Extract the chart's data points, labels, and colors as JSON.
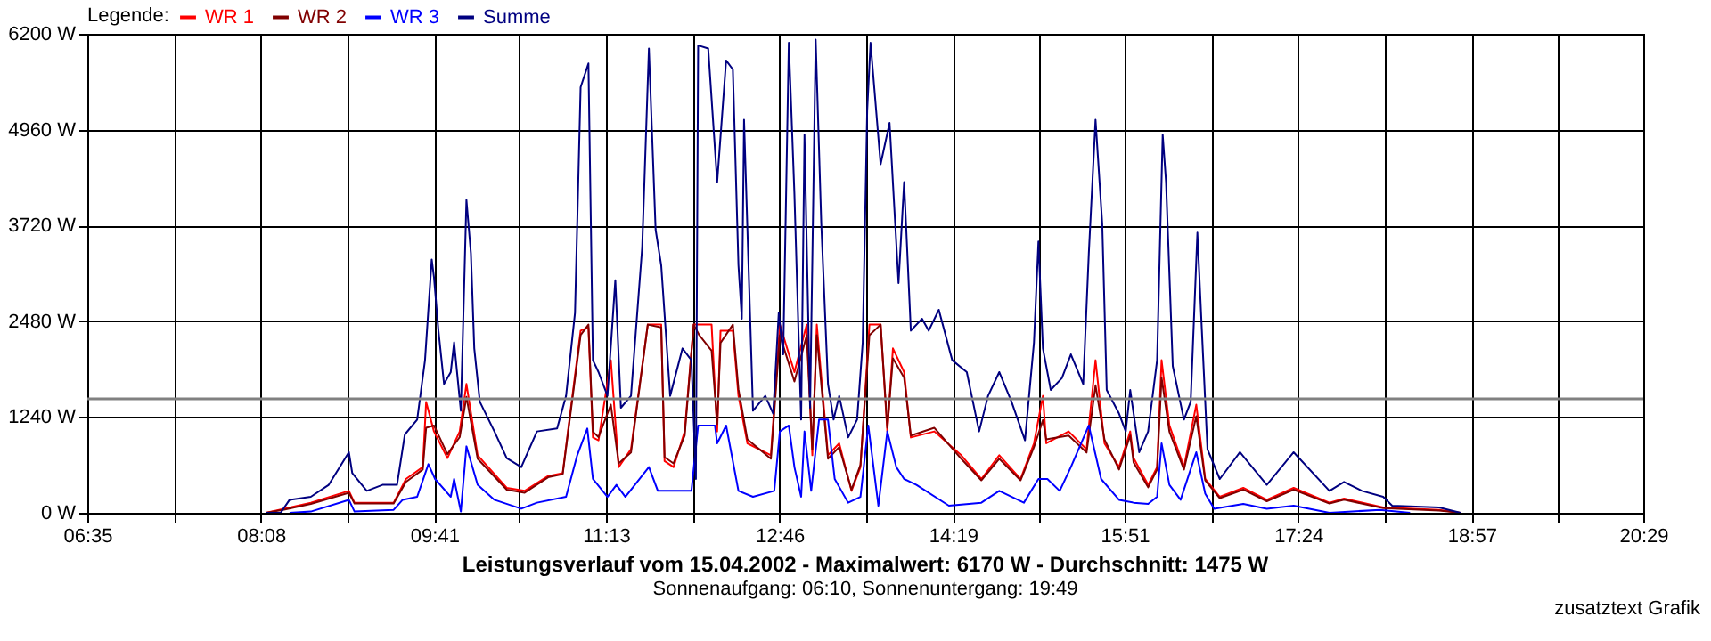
{
  "chart_data": {
    "type": "line",
    "title": "Leistungsverlauf vom 15.04.2002 - Maximalwert: 6170 W - Durchschnitt: 1475 W",
    "subtitle": "Sonnenaufgang: 06:10, Sonnenuntergang: 19:49",
    "legend_title": "Legende:",
    "legend": "top left",
    "grid": true,
    "line_style": "solid",
    "annotations": [
      "zusatztext Grafik"
    ],
    "xlim": [
      6.5833,
      20.4833
    ],
    "xticks": [
      {
        "value": 6.5833,
        "label": "06:35"
      },
      {
        "value": 7.3556,
        "label": null
      },
      {
        "value": 8.1333,
        "label": "08:08"
      },
      {
        "value": 8.9,
        "label": null
      },
      {
        "value": 9.6833,
        "label": "09:41"
      },
      {
        "value": 10.4444,
        "label": null
      },
      {
        "value": 11.2167,
        "label": "11:13"
      },
      {
        "value": 11.9889,
        "label": null
      },
      {
        "value": 12.7667,
        "label": "12:46"
      },
      {
        "value": 13.5333,
        "label": null
      },
      {
        "value": 14.3167,
        "label": "14:19"
      },
      {
        "value": 15.0778,
        "label": null
      },
      {
        "value": 15.85,
        "label": "15:51"
      },
      {
        "value": 16.6222,
        "label": null
      },
      {
        "value": 17.4,
        "label": "17:24"
      },
      {
        "value": 18.1667,
        "label": null
      },
      {
        "value": 18.95,
        "label": "18:57"
      },
      {
        "value": 19.7111,
        "label": null
      },
      {
        "value": 20.4833,
        "label": "20:29"
      }
    ],
    "ylim": [
      0,
      6200
    ],
    "yticks": [
      {
        "value": 0,
        "label": "0 W"
      },
      {
        "value": 1240,
        "label": "1240 W"
      },
      {
        "value": 2480,
        "label": "2480 W"
      },
      {
        "value": 3720,
        "label": "3720 W"
      },
      {
        "value": 4960,
        "label": "4960 W"
      },
      {
        "value": 6200,
        "label": "6200 W"
      }
    ],
    "ref_lines": [
      {
        "axis": "y",
        "value": 1475,
        "color": "#808080"
      }
    ],
    "series": [
      {
        "name": "WR 1",
        "color": "#ff0000",
        "x": [
          8.18,
          8.34,
          8.58,
          8.92,
          8.97,
          9.32,
          9.43,
          9.58,
          9.61,
          9.68,
          9.8,
          9.91,
          9.97,
          10.07,
          10.33,
          10.49,
          10.7,
          10.83,
          10.99,
          11.06,
          11.1,
          11.15,
          11.26,
          11.33,
          11.44,
          11.59,
          11.71,
          11.74,
          11.82,
          11.92,
          12.0,
          12.05,
          12.16,
          12.21,
          12.24,
          12.35,
          12.4,
          12.48,
          12.69,
          12.77,
          12.9,
          13.01,
          13.06,
          13.1,
          13.2,
          13.3,
          13.41,
          13.49,
          13.57,
          13.67,
          13.73,
          13.78,
          13.88,
          13.94,
          14.15,
          14.39,
          14.57,
          14.73,
          14.92,
          15.04,
          15.12,
          15.15,
          15.35,
          15.51,
          15.59,
          15.67,
          15.8,
          15.9,
          15.93,
          16.06,
          16.14,
          16.18,
          16.25,
          16.38,
          16.49,
          16.57,
          16.7,
          16.91,
          17.12,
          17.36,
          17.68,
          17.81,
          18.16,
          18.66,
          18.85
        ],
        "values": [
          0,
          53,
          131,
          284,
          131,
          131,
          438,
          592,
          1436,
          1053,
          708,
          1053,
          1667,
          745,
          323,
          284,
          477,
          514,
          2358,
          2397,
          975,
          938,
          1975,
          592,
          822,
          2436,
          2436,
          669,
          592,
          1053,
          2436,
          2436,
          2436,
          1053,
          2358,
          2358,
          1514,
          899,
          745,
          2436,
          1821,
          2436,
          745,
          2436,
          745,
          899,
          284,
          592,
          2436,
          2436,
          1053,
          2128,
          1821,
          975,
          1053,
          745,
          438,
          745,
          438,
          899,
          1514,
          899,
          1053,
          822,
          1975,
          899,
          592,
          1053,
          708,
          362,
          592,
          1975,
          1130,
          592,
          1399,
          438,
          207,
          323,
          168,
          323,
          131,
          184,
          69,
          38,
          0
        ]
      },
      {
        "name": "WR 2",
        "color": "#800000",
        "x": [
          8.18,
          8.34,
          8.58,
          8.92,
          8.97,
          9.32,
          9.43,
          9.58,
          9.61,
          9.68,
          9.8,
          9.91,
          9.97,
          10.07,
          10.33,
          10.49,
          10.7,
          10.83,
          10.99,
          11.06,
          11.1,
          11.15,
          11.26,
          11.33,
          11.44,
          11.59,
          11.71,
          11.74,
          11.82,
          11.92,
          12.0,
          12.05,
          12.16,
          12.21,
          12.24,
          12.35,
          12.4,
          12.48,
          12.69,
          12.77,
          12.9,
          13.01,
          13.06,
          13.1,
          13.2,
          13.3,
          13.41,
          13.49,
          13.57,
          13.67,
          13.73,
          13.78,
          13.88,
          13.94,
          14.15,
          14.39,
          14.57,
          14.73,
          14.92,
          15.04,
          15.12,
          15.15,
          15.35,
          15.51,
          15.59,
          15.67,
          15.8,
          15.9,
          15.93,
          16.06,
          16.14,
          16.18,
          16.25,
          16.38,
          16.49,
          16.57,
          16.7,
          16.91,
          17.12,
          17.36,
          17.68,
          17.81,
          18.16,
          18.66,
          18.85
        ],
        "values": [
          0,
          40,
          115,
          260,
          120,
          120,
          400,
          560,
          1100,
          1130,
          760,
          980,
          1500,
          700,
          300,
          260,
          460,
          500,
          2300,
          2436,
          1050,
          980,
          1400,
          640,
          780,
          2436,
          2400,
          720,
          640,
          1000,
          2436,
          2300,
          2100,
          1150,
          2200,
          2436,
          1600,
          950,
          700,
          2300,
          1700,
          2300,
          820,
          2300,
          700,
          850,
          300,
          620,
          2300,
          2436,
          1100,
          2000,
          1750,
          1000,
          1100,
          700,
          420,
          700,
          420,
          850,
          1200,
          950,
          1000,
          780,
          1650,
          950,
          560,
          1000,
          650,
          330,
          560,
          1750,
          1050,
          560,
          1250,
          420,
          190,
          300,
          150,
          300,
          120,
          170,
          60,
          30,
          0
        ]
      },
      {
        "name": "WR 3",
        "color": "#0000ff",
        "x": [
          8.39,
          8.58,
          8.92,
          8.97,
          9.32,
          9.4,
          9.53,
          9.63,
          9.69,
          9.83,
          9.86,
          9.92,
          9.97,
          10.07,
          10.22,
          10.46,
          10.6,
          10.86,
          10.96,
          11.05,
          11.1,
          11.23,
          11.31,
          11.39,
          11.6,
          11.68,
          11.82,
          11.98,
          12.04,
          12.13,
          12.19,
          12.21,
          12.29,
          12.4,
          12.53,
          12.72,
          12.77,
          12.85,
          12.9,
          12.96,
          12.99,
          13.05,
          13.12,
          13.2,
          13.26,
          13.38,
          13.49,
          13.56,
          13.65,
          13.73,
          13.81,
          13.88,
          13.99,
          14.28,
          14.57,
          14.73,
          14.95,
          15.08,
          15.16,
          15.27,
          15.37,
          15.53,
          15.64,
          15.8,
          15.93,
          16.06,
          16.14,
          16.18,
          16.25,
          16.35,
          16.49,
          16.57,
          16.65,
          16.91,
          17.12,
          17.36,
          17.68,
          18.13,
          18.4
        ],
        "values": [
          0,
          16,
          168,
          16,
          38,
          168,
          207,
          630,
          438,
          207,
          438,
          16,
          860,
          362,
          168,
          53,
          131,
          207,
          745,
          1091,
          438,
          207,
          362,
          207,
          592,
          284,
          284,
          284,
          1130,
          1130,
          1130,
          899,
          1130,
          284,
          207,
          284,
          1053,
          1130,
          592,
          207,
          1053,
          284,
          1206,
          1206,
          438,
          131,
          207,
          1130,
          92,
          1053,
          592,
          438,
          362,
          92,
          131,
          284,
          131,
          438,
          438,
          284,
          592,
          1130,
          438,
          168,
          131,
          115,
          207,
          899,
          362,
          168,
          784,
          247,
          53,
          115,
          53,
          92,
          0,
          38,
          0
        ]
      },
      {
        "name": "Summe",
        "color": "#000080",
        "x": [
          8.18,
          8.31,
          8.39,
          8.58,
          8.74,
          8.92,
          8.95,
          9.08,
          9.22,
          9.35,
          9.42,
          9.53,
          9.6,
          9.66,
          9.68,
          9.72,
          9.77,
          9.83,
          9.86,
          9.92,
          9.97,
          10.01,
          10.04,
          10.09,
          10.22,
          10.33,
          10.46,
          10.6,
          10.78,
          10.86,
          10.94,
          10.99,
          11.06,
          11.1,
          11.15,
          11.23,
          11.3,
          11.35,
          11.44,
          11.54,
          11.6,
          11.66,
          11.71,
          11.79,
          11.9,
          11.98,
          12.02,
          12.04,
          12.05,
          12.13,
          12.21,
          12.29,
          12.35,
          12.4,
          12.43,
          12.45,
          12.53,
          12.64,
          12.71,
          12.76,
          12.8,
          12.85,
          12.9,
          12.96,
          12.99,
          13.04,
          13.09,
          13.14,
          13.2,
          13.25,
          13.3,
          13.38,
          13.46,
          13.51,
          13.55,
          13.58,
          13.67,
          13.75,
          13.83,
          13.88,
          13.94,
          14.04,
          14.1,
          14.19,
          14.31,
          14.44,
          14.55,
          14.63,
          14.73,
          14.84,
          14.96,
          15.04,
          15.08,
          15.12,
          15.19,
          15.29,
          15.37,
          15.48,
          15.53,
          15.59,
          15.65,
          15.69,
          15.8,
          15.86,
          15.9,
          15.98,
          16.06,
          16.14,
          16.19,
          16.22,
          16.28,
          16.38,
          16.44,
          16.5,
          16.54,
          16.59,
          16.7,
          16.88,
          17.12,
          17.36,
          17.68,
          17.81,
          17.97,
          18.16,
          18.24,
          18.66,
          18.85
        ],
        "values": [
          0,
          0,
          168,
          207,
          362,
          784,
          514,
          284,
          362,
          362,
          1014,
          1206,
          1975,
          3280,
          3050,
          2358,
          1667,
          1821,
          2206,
          1321,
          4050,
          3358,
          2128,
          1436,
          1053,
          708,
          592,
          1053,
          1091,
          1514,
          2589,
          5509,
          5816,
          1975,
          1821,
          1514,
          3012,
          1360,
          1514,
          3434,
          6009,
          3665,
          3204,
          1514,
          2128,
          1975,
          438,
          6046,
          6046,
          6009,
          4280,
          5855,
          5739,
          3204,
          2512,
          5087,
          1321,
          1514,
          1284,
          2589,
          2051,
          6085,
          4126,
          1206,
          4894,
          1360,
          6124,
          3741,
          1667,
          1206,
          1514,
          975,
          1206,
          2206,
          5202,
          6085,
          4511,
          5048,
          2973,
          4280,
          2358,
          2512,
          2358,
          2628,
          1975,
          1821,
          1053,
          1514,
          1821,
          1436,
          938,
          2206,
          3511,
          2128,
          1590,
          1745,
          2051,
          1667,
          3358,
          5087,
          3741,
          1590,
          1284,
          1053,
          1590,
          784,
          1053,
          1975,
          4894,
          4280,
          1898,
          1206,
          1436,
          3626,
          2358,
          822,
          438,
          784,
          362,
          784,
          284,
          399,
          284,
          207,
          92,
          69,
          0
        ]
      }
    ]
  }
}
